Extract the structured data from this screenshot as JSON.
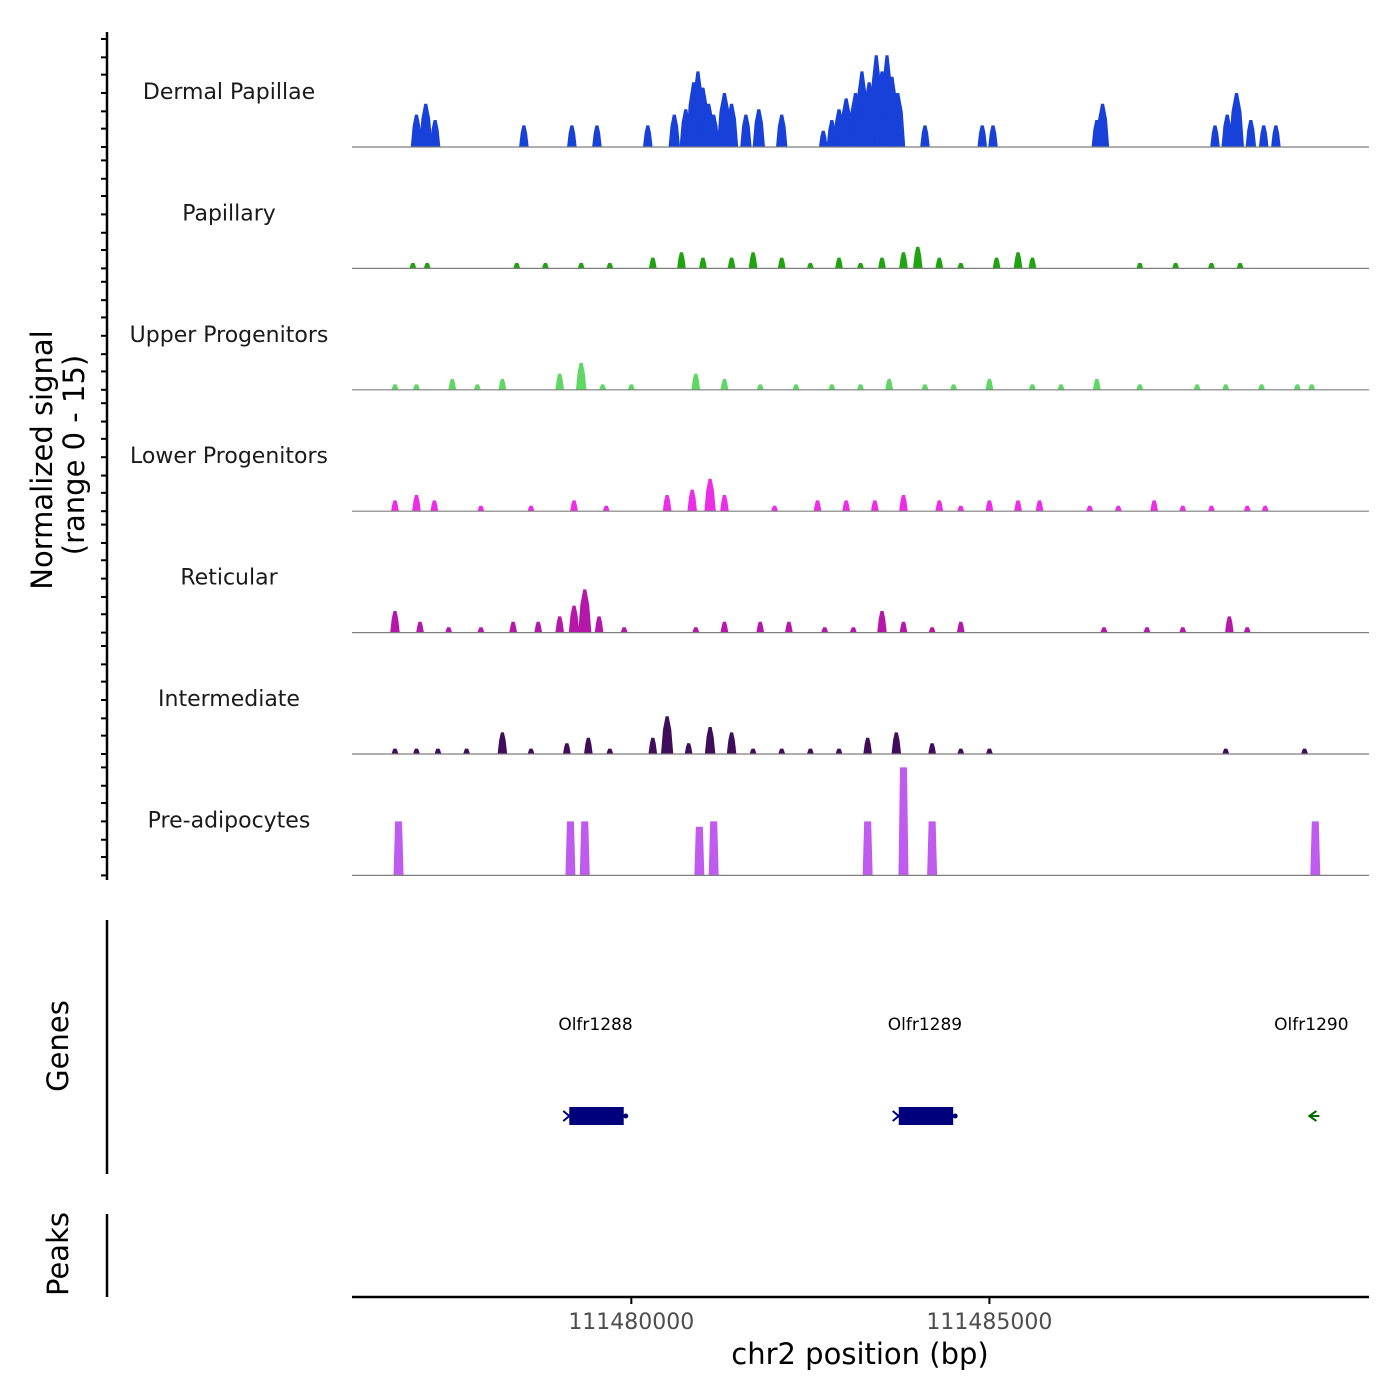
{
  "chart_data": {
    "type": "area",
    "genome_browser": true,
    "signal_axis_title_line1": "Normalized signal",
    "signal_axis_title_line2": "(range 0 - 15)",
    "signal_range": [
      0,
      15
    ],
    "xlabel": "chr2 position (bp)",
    "xlim": [
      111476100,
      111490300
    ],
    "x_ticks": [
      111480000,
      111485000
    ],
    "x_tick_labels": [
      "111480000",
      "111485000"
    ],
    "tracks": [
      {
        "name": "Dermal Papillae",
        "color": "#1741d8",
        "peaks": [
          [
            111477000,
            6
          ],
          [
            111477130,
            8
          ],
          [
            111477260,
            5
          ],
          [
            111478500,
            4
          ],
          [
            111479170,
            4
          ],
          [
            111479520,
            4
          ],
          [
            111480230,
            4
          ],
          [
            111480600,
            6
          ],
          [
            111480760,
            7
          ],
          [
            111480870,
            12
          ],
          [
            111480930,
            14
          ],
          [
            111481000,
            11
          ],
          [
            111481080,
            8
          ],
          [
            111481150,
            6
          ],
          [
            111481300,
            10
          ],
          [
            111481400,
            8
          ],
          [
            111481600,
            6
          ],
          [
            111481780,
            7
          ],
          [
            111482100,
            6
          ],
          [
            111482680,
            3
          ],
          [
            111482800,
            5
          ],
          [
            111482900,
            7
          ],
          [
            111483000,
            9
          ],
          [
            111483130,
            10
          ],
          [
            111483220,
            14
          ],
          [
            111483320,
            12
          ],
          [
            111483420,
            17
          ],
          [
            111483500,
            14
          ],
          [
            111483570,
            17
          ],
          [
            111483640,
            13
          ],
          [
            111483720,
            10
          ],
          [
            111484100,
            4
          ],
          [
            111484900,
            4
          ],
          [
            111485050,
            4
          ],
          [
            111486500,
            5
          ],
          [
            111486580,
            8
          ],
          [
            111488150,
            4
          ],
          [
            111488320,
            6
          ],
          [
            111488450,
            10
          ],
          [
            111488650,
            5
          ],
          [
            111488830,
            4
          ],
          [
            111489000,
            4
          ]
        ]
      },
      {
        "name": "Papillary",
        "color": "#1fa30f",
        "peaks": [
          [
            111476950,
            1
          ],
          [
            111477150,
            1
          ],
          [
            111478400,
            1
          ],
          [
            111478800,
            1
          ],
          [
            111479300,
            1
          ],
          [
            111479700,
            1
          ],
          [
            111480300,
            2
          ],
          [
            111480700,
            3
          ],
          [
            111481000,
            2
          ],
          [
            111481400,
            2
          ],
          [
            111481700,
            3
          ],
          [
            111482100,
            2
          ],
          [
            111482500,
            1
          ],
          [
            111482900,
            2
          ],
          [
            111483200,
            1
          ],
          [
            111483500,
            2
          ],
          [
            111483800,
            3
          ],
          [
            111484000,
            4
          ],
          [
            111484300,
            2
          ],
          [
            111484600,
            1
          ],
          [
            111485100,
            2
          ],
          [
            111485400,
            3
          ],
          [
            111485600,
            2
          ],
          [
            111487100,
            1
          ],
          [
            111487600,
            1
          ],
          [
            111488100,
            1
          ],
          [
            111488500,
            1
          ]
        ]
      },
      {
        "name": "Upper Progenitors",
        "color": "#5ed765",
        "peaks": [
          [
            111476700,
            1
          ],
          [
            111477000,
            1
          ],
          [
            111477500,
            2
          ],
          [
            111477850,
            1
          ],
          [
            111478200,
            2
          ],
          [
            111479000,
            3
          ],
          [
            111479300,
            5
          ],
          [
            111479600,
            1
          ],
          [
            111480000,
            1
          ],
          [
            111480900,
            3
          ],
          [
            111481300,
            2
          ],
          [
            111481800,
            1
          ],
          [
            111482300,
            1
          ],
          [
            111482800,
            1
          ],
          [
            111483200,
            1
          ],
          [
            111483600,
            2
          ],
          [
            111484100,
            1
          ],
          [
            111484500,
            1
          ],
          [
            111485000,
            2
          ],
          [
            111485600,
            1
          ],
          [
            111486000,
            1
          ],
          [
            111486500,
            2
          ],
          [
            111487100,
            1
          ],
          [
            111487900,
            1
          ],
          [
            111488300,
            1
          ],
          [
            111488800,
            1
          ],
          [
            111489300,
            1
          ],
          [
            111489500,
            1
          ]
        ]
      },
      {
        "name": "Lower Progenitors",
        "color": "#ec2ce6",
        "peaks": [
          [
            111476700,
            2
          ],
          [
            111477000,
            3
          ],
          [
            111477250,
            2
          ],
          [
            111477900,
            1
          ],
          [
            111478600,
            1
          ],
          [
            111479200,
            2
          ],
          [
            111479650,
            1
          ],
          [
            111480500,
            3
          ],
          [
            111480850,
            4
          ],
          [
            111481100,
            6
          ],
          [
            111481300,
            3
          ],
          [
            111482000,
            1
          ],
          [
            111482600,
            2
          ],
          [
            111483000,
            2
          ],
          [
            111483400,
            2
          ],
          [
            111483800,
            3
          ],
          [
            111484300,
            2
          ],
          [
            111484600,
            1
          ],
          [
            111485000,
            2
          ],
          [
            111485400,
            2
          ],
          [
            111485700,
            2
          ],
          [
            111486400,
            1
          ],
          [
            111486800,
            1
          ],
          [
            111487300,
            2
          ],
          [
            111487700,
            1
          ],
          [
            111488100,
            1
          ],
          [
            111488600,
            1
          ],
          [
            111488850,
            1
          ]
        ]
      },
      {
        "name": "Reticular",
        "color": "#b518a8",
        "peaks": [
          [
            111476700,
            4
          ],
          [
            111477050,
            2
          ],
          [
            111477450,
            1
          ],
          [
            111477900,
            1
          ],
          [
            111478350,
            2
          ],
          [
            111478700,
            2
          ],
          [
            111479000,
            3
          ],
          [
            111479200,
            5
          ],
          [
            111479350,
            8
          ],
          [
            111479550,
            3
          ],
          [
            111479900,
            1
          ],
          [
            111480900,
            1
          ],
          [
            111481300,
            2
          ],
          [
            111481800,
            2
          ],
          [
            111482200,
            2
          ],
          [
            111482700,
            1
          ],
          [
            111483100,
            1
          ],
          [
            111483500,
            4
          ],
          [
            111483800,
            2
          ],
          [
            111484200,
            1
          ],
          [
            111484600,
            2
          ],
          [
            111486600,
            1
          ],
          [
            111487200,
            1
          ],
          [
            111487700,
            1
          ],
          [
            111488350,
            3
          ],
          [
            111488600,
            1
          ]
        ]
      },
      {
        "name": "Intermediate",
        "color": "#3f0d5a",
        "peaks": [
          [
            111476700,
            1
          ],
          [
            111477000,
            1
          ],
          [
            111477300,
            1
          ],
          [
            111477700,
            1
          ],
          [
            111478200,
            4
          ],
          [
            111478600,
            1
          ],
          [
            111479100,
            2
          ],
          [
            111479400,
            3
          ],
          [
            111479700,
            1
          ],
          [
            111480300,
            3
          ],
          [
            111480500,
            7
          ],
          [
            111480800,
            2
          ],
          [
            111481100,
            5
          ],
          [
            111481400,
            4
          ],
          [
            111481700,
            1
          ],
          [
            111482100,
            1
          ],
          [
            111482500,
            1
          ],
          [
            111482900,
            1
          ],
          [
            111483300,
            3
          ],
          [
            111483700,
            4
          ],
          [
            111484200,
            2
          ],
          [
            111484600,
            1
          ],
          [
            111485000,
            1
          ],
          [
            111488300,
            1
          ],
          [
            111489400,
            1
          ]
        ]
      },
      {
        "name": "Pre-adipocytes",
        "color": "#c05bf0",
        "bars": [
          [
            111476750,
            10
          ],
          [
            111479150,
            10
          ],
          [
            111479350,
            10
          ],
          [
            111480950,
            9
          ],
          [
            111481150,
            10
          ],
          [
            111483300,
            10
          ],
          [
            111483800,
            20
          ],
          [
            111484200,
            10
          ],
          [
            111489550,
            10
          ]
        ]
      }
    ],
    "genes_panel_title": "Genes",
    "genes": [
      {
        "name": "Olfr1288",
        "start": 111479050,
        "end": 111479950,
        "strand": "-",
        "color": "#00007c"
      },
      {
        "name": "Olfr1289",
        "start": 111483650,
        "end": 111484550,
        "strand": "-",
        "color": "#00007c"
      },
      {
        "name": "Olfr1290",
        "start": 111489430,
        "end": 111489560,
        "strand": "-",
        "color": "#006a00"
      }
    ],
    "peaks_panel_title": "Peaks",
    "peaks_list": []
  }
}
